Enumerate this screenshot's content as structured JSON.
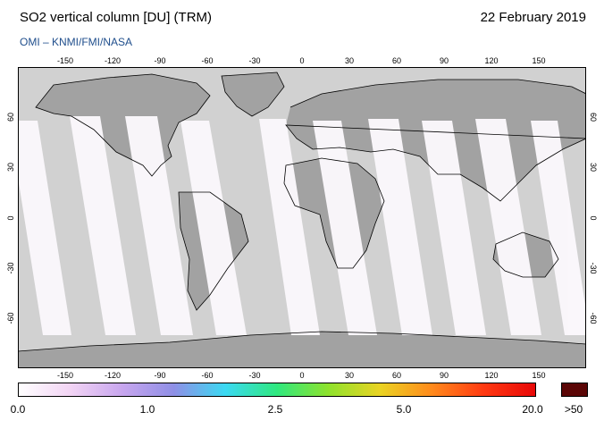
{
  "header": {
    "title": "SO2 vertical column [DU] (TRM)",
    "date": "22 February 2019",
    "source": "OMI  –  KNMI/FMI/NASA"
  },
  "map": {
    "lon_ticks": [
      "-150",
      "-120",
      "-90",
      "-60",
      "-30",
      "0",
      "30",
      "60",
      "90",
      "120",
      "150"
    ],
    "lat_ticks": [
      "60",
      "30",
      "0",
      "-30",
      "-60"
    ],
    "colors": {
      "ocean_nodata": "#d1d1d1",
      "land_nodata": "#a2a2a2",
      "valid_data": "#fbf8fc",
      "coastline": "#000000"
    }
  },
  "colorbar": {
    "labels": [
      "0.0",
      "1.0",
      "2.5",
      "5.0",
      "20.0"
    ],
    "overflow_label": ">50",
    "overflow_color": "#5b0606",
    "gradient": [
      "#ffffff",
      "#f2d4f4",
      "#c8a6ee",
      "#8f8fe6",
      "#3bd9f2",
      "#2fe87f",
      "#8fe22c",
      "#ead323",
      "#ff8a1c",
      "#ff3a12",
      "#e80808"
    ]
  }
}
